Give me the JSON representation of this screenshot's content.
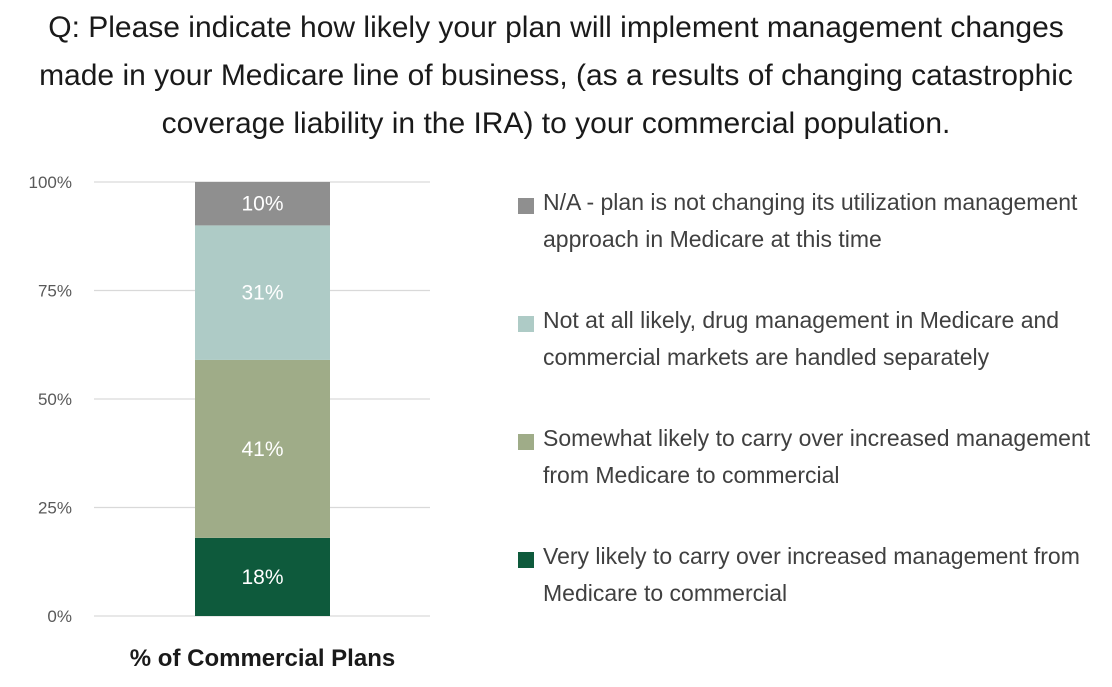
{
  "title": "Q: Please indicate how likely your plan will implement management changes made in your Medicare line of business, (as a results of changing catastrophic coverage liability in the IRA) to your commercial population.",
  "chart_data": {
    "type": "bar",
    "stacked": true,
    "categories": [
      "% of Commercial Plans"
    ],
    "y_ticks": [
      "0%",
      "25%",
      "50%",
      "75%",
      "100%"
    ],
    "ylim": [
      0,
      100
    ],
    "grid": true,
    "legend_position": "right",
    "series": [
      {
        "name": "Very likely to carry over increased management from Medicare to commercial",
        "values": [
          18
        ],
        "label": "18%",
        "color": "#0e5a3c"
      },
      {
        "name": "Somewhat likely to carry over increased management from Medicare to commercial",
        "values": [
          41
        ],
        "label": "41%",
        "color": "#9fac88"
      },
      {
        "name": "Not at all likely, drug management in Medicare and commercial markets are handled separately",
        "values": [
          31
        ],
        "label": "31%",
        "color": "#aecbc6"
      },
      {
        "name": "N/A - plan is not changing its utilization management approach in Medicare at this time",
        "values": [
          10
        ],
        "label": "10%",
        "color": "#8f8f8f"
      }
    ]
  }
}
